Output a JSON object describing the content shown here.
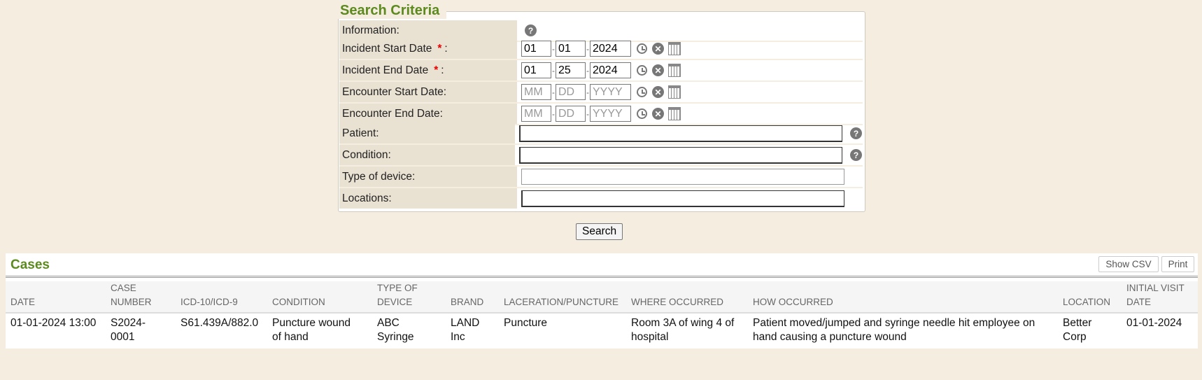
{
  "search": {
    "title": "Search Criteria",
    "information_label": "Information:",
    "incident_start_label": "Incident Start Date",
    "incident_end_label": "Incident End Date",
    "encounter_start_label": "Encounter Start Date:",
    "encounter_end_label": "Encounter End Date:",
    "patient_label": "Patient:",
    "condition_label": "Condition:",
    "device_label": "Type of device:",
    "locations_label": "Locations:",
    "required_mark": "*",
    "colon": ":",
    "incident_start": {
      "mm": "01",
      "dd": "01",
      "yyyy": "2024"
    },
    "incident_end": {
      "mm": "01",
      "dd": "25",
      "yyyy": "2024"
    },
    "ph": {
      "mm": "MM",
      "dd": "DD",
      "yyyy": "YYYY"
    },
    "sep": "-",
    "search_button": "Search"
  },
  "cases": {
    "title": "Cases",
    "show_csv": "Show CSV",
    "print": "Print",
    "columns": [
      [
        "DATE",
        ""
      ],
      [
        "CASE",
        "NUMBER"
      ],
      [
        "ICD-10/ICD-9",
        ""
      ],
      [
        "CONDITION",
        ""
      ],
      [
        "TYPE OF",
        "DEVICE"
      ],
      [
        "BRAND",
        ""
      ],
      [
        "LACERATION/PUNCTURE",
        ""
      ],
      [
        "WHERE OCCURRED",
        ""
      ],
      [
        "HOW OCCURRED",
        ""
      ],
      [
        "LOCATION",
        ""
      ],
      [
        "INITIAL VISIT",
        "DATE"
      ]
    ],
    "rows": [
      [
        [
          "01-01-2024 13:00",
          ""
        ],
        [
          "S2024-",
          "0001"
        ],
        [
          "S61.439A/882.0",
          ""
        ],
        [
          "Puncture wound",
          "of hand"
        ],
        [
          "ABC",
          "Syringe"
        ],
        [
          "LAND",
          "Inc"
        ],
        [
          "Puncture",
          ""
        ],
        [
          "Room 3A of wing 4 of",
          "hospital"
        ],
        [
          "Patient moved/jumped and syringe needle hit employee on",
          "hand causing a puncture wound"
        ],
        [
          "Better",
          "Corp"
        ],
        [
          "01-01-2024",
          ""
        ]
      ]
    ]
  },
  "colors": {
    "accent": "#5c8a1e",
    "background": "#f5ede0",
    "label_bg": "#e9e1d2",
    "required": "#ee0000"
  }
}
